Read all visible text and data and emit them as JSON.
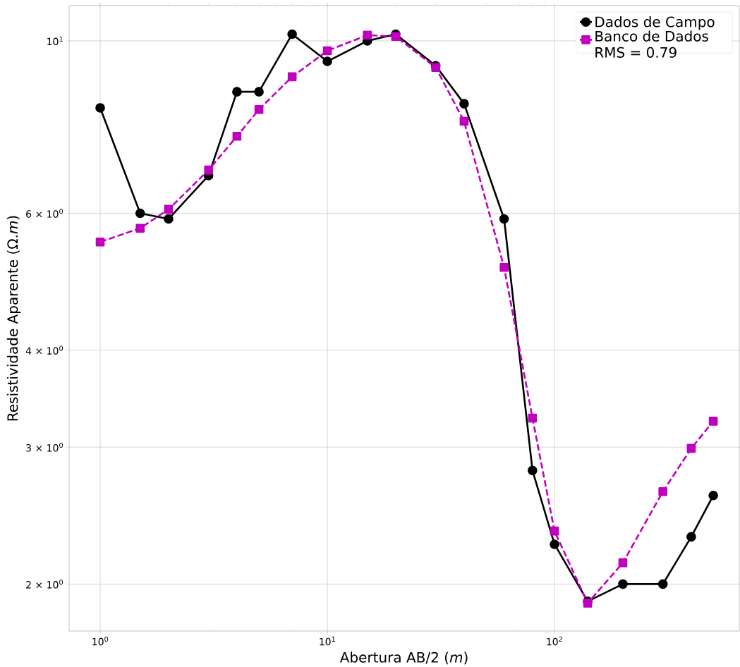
{
  "chart_data": {
    "type": "line",
    "xlabel": "Abertura AB/2 (*m*)",
    "ylabel": "Resistividade Aparente (Ω.*m*)",
    "log": "xy",
    "grid": true,
    "legend": "top right",
    "xlim": [
      0.73,
      651
    ],
    "ylim": [
      1.74,
      11.1
    ],
    "xticks": [
      {
        "value": 1,
        "label": "10$^{0}$"
      },
      {
        "value": 10,
        "label": "10$^{1}$"
      },
      {
        "value": 100,
        "label": "10$^{2}$"
      }
    ],
    "yticks": [
      {
        "value": 2,
        "label": "2 × 10$^{0}$"
      },
      {
        "value": 3,
        "label": "3 × 10$^{0}$"
      },
      {
        "value": 4,
        "label": "4 × 10$^{0}$"
      },
      {
        "value": 6,
        "label": "6 × 10$^{0}$"
      },
      {
        "value": 10,
        "label": "10$^{1}$"
      }
    ],
    "x": [
      1,
      1.5,
      2,
      3,
      4,
      5,
      7,
      10,
      15,
      20,
      30,
      40,
      60,
      80,
      100,
      140,
      200,
      300,
      400,
      500
    ],
    "series": [
      {
        "name": "Dados de Campo",
        "color": "#000000",
        "marker": "circle",
        "line_style": "solid",
        "values": [
          8.2,
          6.0,
          5.9,
          6.71,
          8.6,
          8.6,
          10.2,
          9.41,
          10.0,
          10.2,
          9.29,
          8.3,
          5.9,
          2.8,
          2.25,
          1.9,
          2.0,
          2.0,
          2.3,
          2.6
        ]
      },
      {
        "name": "Banco de Dados RMS = 0.79",
        "color": "#bf00bf",
        "marker": "square",
        "line_style": "dashed",
        "values": [
          5.51,
          5.74,
          6.07,
          6.82,
          7.54,
          8.16,
          8.99,
          9.71,
          10.17,
          10.13,
          9.24,
          7.88,
          5.11,
          3.27,
          2.34,
          1.89,
          2.13,
          2.63,
          2.99,
          3.24
        ]
      }
    ]
  }
}
